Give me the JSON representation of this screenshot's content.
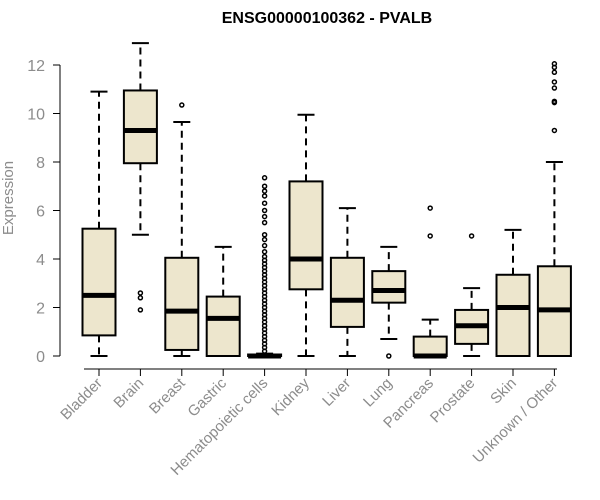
{
  "chart_data": {
    "type": "boxplot",
    "title": "ENSG00000100362 - PVALB",
    "xlabel": "",
    "ylabel": "Expression",
    "ylim": [
      0,
      12
    ],
    "yticks": [
      "0",
      "2",
      "4",
      "6",
      "8",
      "10",
      "12"
    ],
    "categories": [
      "Bladder",
      "Brain",
      "Breast",
      "Gastric",
      "Hematopoietic cells",
      "Kidney",
      "Liver",
      "Lung",
      "Pancreas",
      "Prostate",
      "Skin",
      "Unknown / Other"
    ],
    "boxes": [
      {
        "min": 0.0,
        "q1": 0.85,
        "median": 2.5,
        "q3": 5.25,
        "max": 10.9,
        "outliers": []
      },
      {
        "min": 5.0,
        "q1": 7.95,
        "median": 9.3,
        "q3": 10.95,
        "max": 12.9,
        "outliers": [
          1.9,
          2.4,
          2.6
        ]
      },
      {
        "min": 0.0,
        "q1": 0.25,
        "median": 1.85,
        "q3": 4.05,
        "max": 9.65,
        "outliers": [
          10.35
        ]
      },
      {
        "min": 0.0,
        "q1": 0.0,
        "median": 1.55,
        "q3": 2.45,
        "max": 4.5,
        "outliers": []
      },
      {
        "min": 0.0,
        "q1": 0.0,
        "median": 0.0,
        "q3": 0.05,
        "max": 0.1,
        "outliers": [
          0.2,
          0.35,
          0.5,
          0.65,
          0.8,
          0.95,
          1.1,
          1.25,
          1.4,
          1.55,
          1.7,
          1.85,
          2.0,
          2.15,
          2.3,
          2.45,
          2.6,
          2.75,
          2.9,
          3.05,
          3.2,
          3.35,
          3.5,
          3.65,
          3.8,
          3.95,
          4.1,
          4.3,
          4.55,
          4.8,
          5.0,
          5.5,
          5.75,
          6.0,
          6.3,
          6.6,
          6.8,
          7.0,
          7.35
        ]
      },
      {
        "min": 0.0,
        "q1": 2.75,
        "median": 4.0,
        "q3": 7.2,
        "max": 9.95,
        "outliers": []
      },
      {
        "min": 0.0,
        "q1": 1.2,
        "median": 2.3,
        "q3": 4.05,
        "max": 6.1,
        "outliers": []
      },
      {
        "min": 0.7,
        "q1": 2.2,
        "median": 2.7,
        "q3": 3.5,
        "max": 4.5,
        "outliers": [
          0.0
        ]
      },
      {
        "min": 0.0,
        "q1": 0.0,
        "median": 0.0,
        "q3": 0.8,
        "max": 1.5,
        "outliers": [
          4.95,
          6.1
        ]
      },
      {
        "min": 0.0,
        "q1": 0.5,
        "median": 1.25,
        "q3": 1.9,
        "max": 2.8,
        "outliers": [
          4.95
        ]
      },
      {
        "min": 0.0,
        "q1": 0.0,
        "median": 2.0,
        "q3": 3.35,
        "max": 5.2,
        "outliers": []
      },
      {
        "min": 0.0,
        "q1": 0.0,
        "median": 1.9,
        "q3": 3.7,
        "max": 8.0,
        "outliers": [
          9.3,
          10.45,
          10.5,
          11.05,
          11.3,
          11.7,
          11.9,
          12.05
        ]
      }
    ]
  },
  "colors": {
    "box_fill": "#ede6cd",
    "stroke": "#000000",
    "axis_text": "#8c8c8c"
  }
}
